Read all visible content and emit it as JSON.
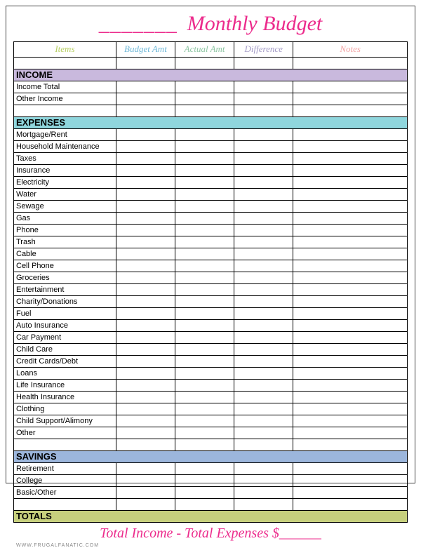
{
  "title": {
    "blank": "_______",
    "text": "Monthly Budget"
  },
  "columns": {
    "items": {
      "label": "Items",
      "color": "#b7cf63"
    },
    "budget": {
      "label": "Budget Amt",
      "color": "#6fb8d8"
    },
    "actual": {
      "label": "Actual Amt",
      "color": "#8fc6a4"
    },
    "diff": {
      "label": "Difference",
      "color": "#a29ac6"
    },
    "notes": {
      "label": "Notes",
      "color": "#f3a6a6"
    }
  },
  "sections": [
    {
      "name": "INCOME",
      "bg": "#c9b9dd",
      "rows": [
        "Income Total",
        "Other Income"
      ]
    },
    {
      "name": "EXPENSES",
      "bg": "#8fd6dd",
      "rows": [
        "Mortgage/Rent",
        "Household Maintenance",
        "Taxes",
        "Insurance",
        "Electricity",
        "Water",
        "Sewage",
        "Gas",
        "Phone",
        "Trash",
        "Cable",
        "Cell Phone",
        "Groceries",
        "Entertainment",
        "Charity/Donations",
        "Fuel",
        "Auto Insurance",
        "Car Payment",
        "Child Care",
        "Credit Cards/Debt",
        "Loans",
        "Life Insurance",
        "Health Insurance",
        "Clothing",
        "Child Support/Alimony",
        "Other"
      ]
    },
    {
      "name": "SAVINGS",
      "bg": "#9cb6dc",
      "rows": [
        "Retirement",
        "College",
        "Basic/Other"
      ]
    },
    {
      "name": "TOTALS",
      "bg": "#c6cf7d",
      "rows": []
    }
  ],
  "footer": "Total Income - Total Expenses $______",
  "credit": "WWW.FRUGALFANATIC.COM"
}
